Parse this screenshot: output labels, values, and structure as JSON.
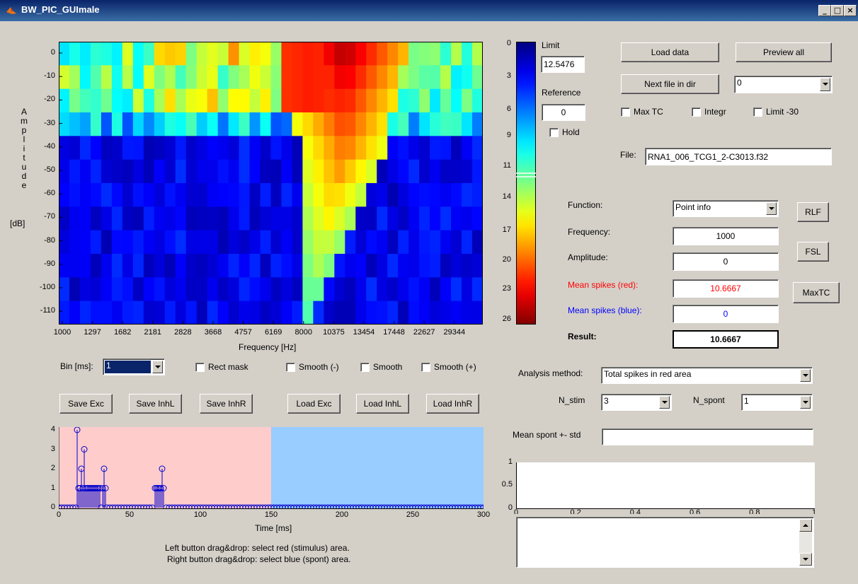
{
  "window": {
    "title": "BW_PIC_GUImale",
    "minimize": "_",
    "maximize": "□",
    "close": "×"
  },
  "heatmap": {
    "yaxis_label_letters": [
      "A",
      "m",
      "p",
      "l",
      "i",
      "t",
      "u",
      "d",
      "e"
    ],
    "yaxis_label_unit": "[dB]",
    "xlabel": "Frequency [Hz]",
    "yticks": [
      "0",
      "-10",
      "-20",
      "-30",
      "-40",
      "-50",
      "-60",
      "-70",
      "-80",
      "-90",
      "-100",
      "-110"
    ],
    "xticks": [
      "1000",
      "1297",
      "1682",
      "2181",
      "2828",
      "3668",
      "4757",
      "6169",
      "8000",
      "10375",
      "13454",
      "17448",
      "22627",
      "29344"
    ]
  },
  "colorbar": {
    "ticks": [
      "0",
      "3",
      "6",
      "9",
      "11",
      "14",
      "17",
      "20",
      "23",
      "26"
    ]
  },
  "limit": {
    "label": "Limit",
    "value": "12.5476"
  },
  "reference": {
    "label": "Reference",
    "value": "0"
  },
  "hold": {
    "label": "Hold"
  },
  "buttons": {
    "load_data": "Load data",
    "preview_all": "Preview all",
    "next_file": "Next file in dir",
    "rlf": "RLF",
    "fsl": "FSL",
    "maxtc": "MaxTC",
    "save_exc": "Save Exc",
    "save_inhl": "Save InhL",
    "save_inhr": "Save InhR",
    "load_exc": "Load Exc",
    "load_inhl": "Load InhL",
    "load_inhr": "Load InhR"
  },
  "file_combo": {
    "value": "0"
  },
  "options": {
    "max_tc": "Max TC",
    "integr": "Integr",
    "limit30": "Limit -30"
  },
  "file": {
    "label": "File:",
    "value": "RNA1_006_TCG1_2-C3013.f32"
  },
  "info": {
    "function_label": "Function:",
    "function_value": "Point info",
    "frequency_label": "Frequency:",
    "frequency_value": "1000",
    "amplitude_label": "Amplitude:",
    "amplitude_value": "0",
    "mean_red_label": "Mean spikes (red):",
    "mean_red_value": "10.6667",
    "mean_blue_label": "Mean spikes (blue):",
    "mean_blue_value": "0",
    "result_label": "Result:",
    "result_value": "10.6667"
  },
  "bin": {
    "label": "Bin [ms]:",
    "value": "1"
  },
  "masks": {
    "rect": "Rect mask",
    "smooth_minus": "Smooth (-)",
    "smooth": "Smooth",
    "smooth_plus": "Smooth (+)"
  },
  "analysis": {
    "method_label": "Analysis method:",
    "method_value": "Total spikes in red area",
    "nstim_label": "N_stim",
    "nstim_value": "3",
    "nspont_label": "N_spont",
    "nspont_value": "1",
    "spont_label": "Mean spont +- std",
    "spont_value": ""
  },
  "psth": {
    "xlabel": "Time [ms]",
    "xticks": [
      "0",
      "50",
      "100",
      "150",
      "200",
      "250",
      "300"
    ],
    "yticks": [
      "0",
      "1",
      "2",
      "3",
      "4"
    ],
    "help1": "Left button drag&drop: select red (stimulus) area.",
    "help2": "Right button drag&drop: select blue (spont) area."
  },
  "small_plot": {
    "yticks": [
      "0",
      "0.5",
      "1"
    ],
    "xticks": [
      "0",
      "0.2",
      "0.4",
      "0.6",
      "0.8",
      "1"
    ]
  },
  "colors": {
    "red_text": "#ff0000",
    "blue_text": "#0000ff",
    "red_area": "#ffcccc",
    "blue_area": "#99ccff"
  }
}
